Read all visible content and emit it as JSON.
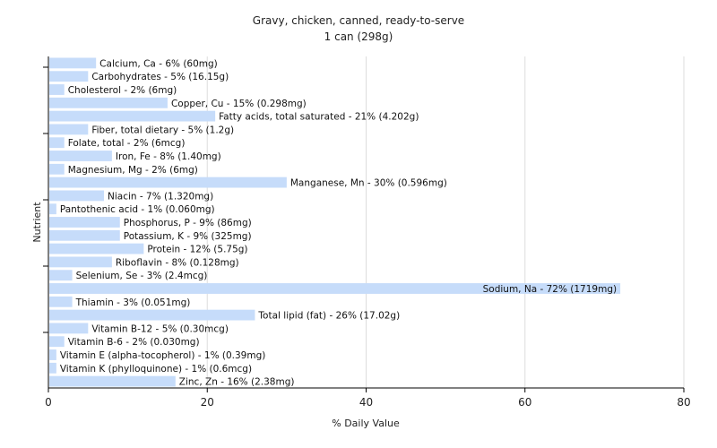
{
  "chart_data": {
    "type": "bar",
    "orientation": "horizontal",
    "title": "Gravy, chicken, canned, ready-to-serve",
    "subtitle": "1 can (298g)",
    "xlabel": "% Daily Value",
    "ylabel": "Nutrient",
    "xlim": [
      0,
      80
    ],
    "xticks": [
      "0",
      "20",
      "40",
      "60",
      "80"
    ],
    "grid": true,
    "bar_color": "#c6dcfa",
    "categories": [
      "Calcium, Ca",
      "Carbohydrates",
      "Cholesterol",
      "Copper, Cu",
      "Fatty acids, total saturated",
      "Fiber, total dietary",
      "Folate, total",
      "Iron, Fe",
      "Magnesium, Mg",
      "Manganese, Mn",
      "Niacin",
      "Pantothenic acid",
      "Phosphorus, P",
      "Potassium, K",
      "Protein",
      "Riboflavin",
      "Selenium, Se",
      "Sodium, Na",
      "Thiamin",
      "Total lipid (fat)",
      "Vitamin B-12",
      "Vitamin B-6",
      "Vitamin E (alpha-tocopherol)",
      "Vitamin K (phylloquinone)",
      "Zinc, Zn"
    ],
    "values": [
      6,
      5,
      2,
      15,
      21,
      5,
      2,
      8,
      2,
      30,
      7,
      1,
      9,
      9,
      12,
      8,
      3,
      72,
      3,
      26,
      5,
      2,
      1,
      1,
      16
    ],
    "labels": [
      "Calcium, Ca - 6% (60mg)",
      "Carbohydrates - 5% (16.15g)",
      "Cholesterol - 2% (6mg)",
      "Copper, Cu - 15% (0.298mg)",
      "Fatty acids, total saturated - 21% (4.202g)",
      "Fiber, total dietary - 5% (1.2g)",
      "Folate, total - 2% (6mcg)",
      "Iron, Fe - 8% (1.40mg)",
      "Magnesium, Mg - 2% (6mg)",
      "Manganese, Mn - 30% (0.596mg)",
      "Niacin - 7% (1.320mg)",
      "Pantothenic acid - 1% (0.060mg)",
      "Phosphorus, P - 9% (86mg)",
      "Potassium, K - 9% (325mg)",
      "Protein - 12% (5.75g)",
      "Riboflavin - 8% (0.128mg)",
      "Selenium, Se - 3% (2.4mcg)",
      "Sodium, Na - 72% (1719mg)",
      "Thiamin - 3% (0.051mg)",
      "Total lipid (fat) - 26% (17.02g)",
      "Vitamin B-12 - 5% (0.30mcg)",
      "Vitamin B-6 - 2% (0.030mg)",
      "Vitamin E (alpha-tocopherol) - 1% (0.39mg)",
      "Vitamin K (phylloquinone) - 1% (0.6mcg)",
      "Zinc, Zn - 16% (2.38mg)"
    ]
  }
}
